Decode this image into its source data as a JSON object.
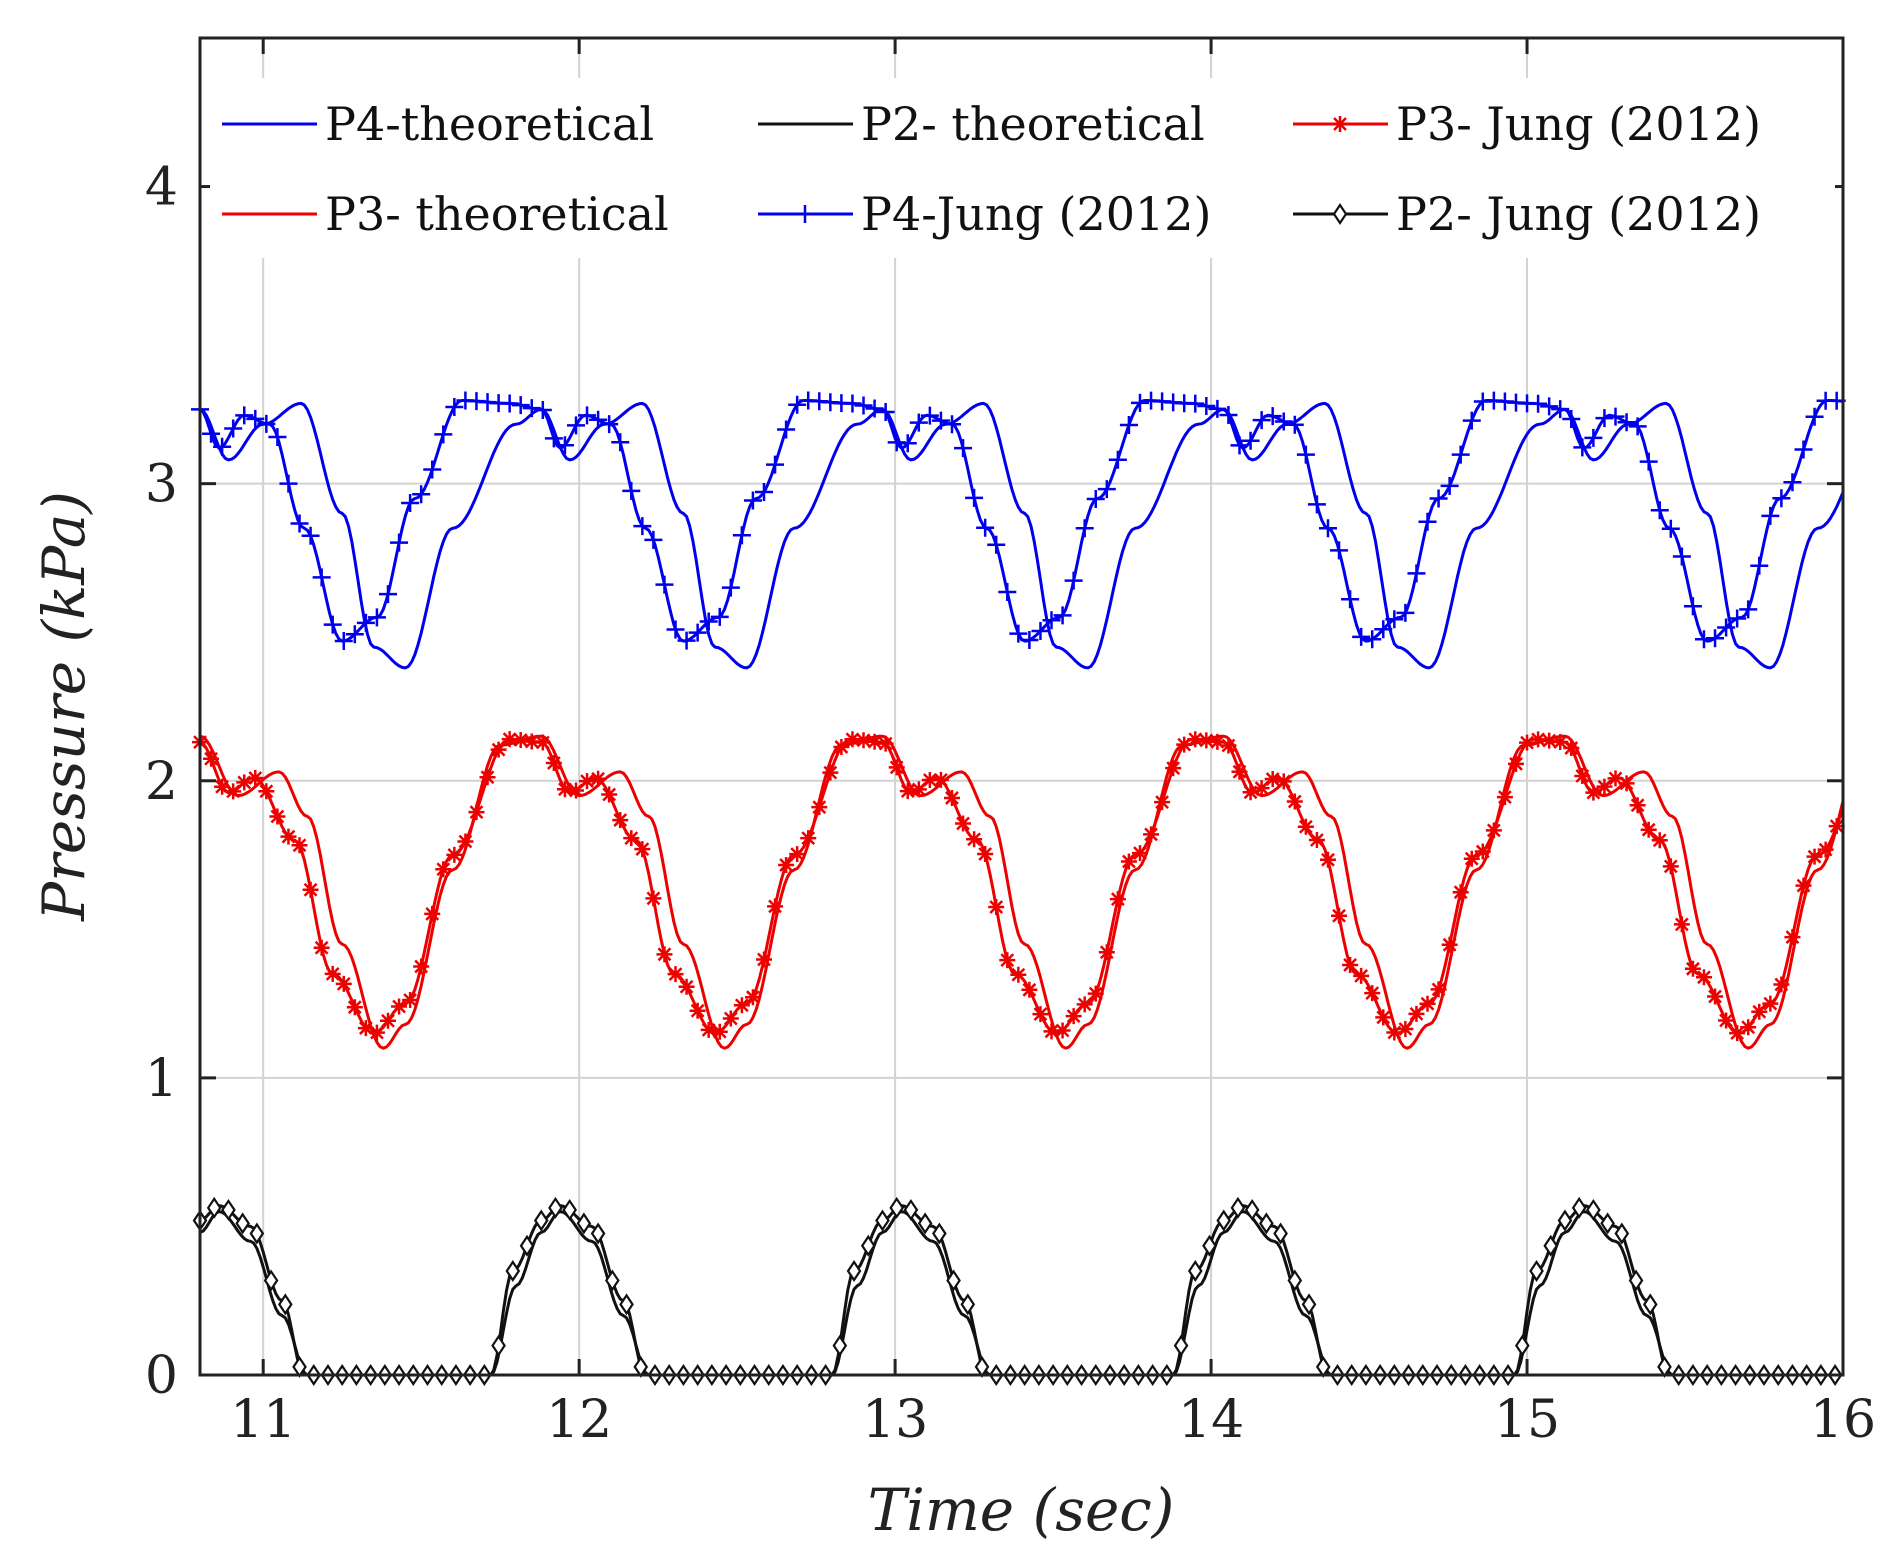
{
  "chart_data": {
    "type": "line",
    "title": "",
    "xlabel": "Time (sec)",
    "ylabel": "Pressure (kPa)",
    "xlim": [
      10.8,
      16
    ],
    "ylim": [
      0,
      4.5
    ],
    "xticks": [
      11,
      12,
      13,
      14,
      15,
      16
    ],
    "yticks": [
      0,
      1,
      2,
      3,
      4
    ],
    "xtick_labels": [
      "11",
      "12",
      "13",
      "14",
      "15",
      "16"
    ],
    "ytick_labels": [
      "0",
      "1",
      "2",
      "3",
      "4"
    ],
    "grid": true,
    "legend_position": "top",
    "period": 1.08,
    "series": [
      {
        "name": "P4-theoretical",
        "color": "#0000ee",
        "marker": "none",
        "cycle_t": [
          0,
          0.09,
          0.2,
          0.32,
          0.45,
          0.55,
          0.65,
          0.8,
          1.0,
          1.08
        ],
        "cycle_y": [
          3.25,
          3.08,
          3.2,
          3.27,
          2.9,
          2.45,
          2.38,
          2.85,
          3.2,
          3.25
        ],
        "start": 10.8,
        "end": 16.0
      },
      {
        "name": "P4-Jung (2012)",
        "color": "#0000ee",
        "marker": "plus",
        "cycle_t": [
          0,
          0.06,
          0.14,
          0.22,
          0.33,
          0.45,
          0.56,
          0.68,
          0.83,
          0.98,
          1.08
        ],
        "cycle_y": [
          3.25,
          3.12,
          3.23,
          3.2,
          2.85,
          2.47,
          2.55,
          2.95,
          3.28,
          3.27,
          3.25
        ],
        "start": 10.8,
        "end": 16.0
      },
      {
        "name": "P3- theoretical",
        "color": "#ee0000",
        "marker": "none",
        "cycle_t": [
          0,
          0.12,
          0.25,
          0.34,
          0.45,
          0.58,
          0.65,
          0.8,
          0.95,
          1.08
        ],
        "cycle_y": [
          2.15,
          1.95,
          2.03,
          1.88,
          1.45,
          1.1,
          1.18,
          1.7,
          2.12,
          2.15
        ],
        "start": 10.8,
        "end": 16.0
      },
      {
        "name": "P3- Jung (2012)",
        "color": "#ee0000",
        "marker": "asterisk",
        "cycle_t": [
          0,
          0.09,
          0.17,
          0.3,
          0.42,
          0.55,
          0.65,
          0.8,
          0.98,
          1.08
        ],
        "cycle_y": [
          2.13,
          1.96,
          2.01,
          1.8,
          1.35,
          1.15,
          1.25,
          1.75,
          2.14,
          2.13
        ],
        "start": 10.8,
        "end": 16.0
      },
      {
        "name": "P2- theoretical",
        "color": "#111111",
        "marker": "none",
        "cycle_t": [
          0,
          0.06,
          0.16,
          0.26,
          0.34,
          0.92,
          1.0,
          1.08
        ],
        "cycle_y": [
          0.48,
          0.55,
          0.45,
          0.2,
          0.0,
          0.0,
          0.3,
          0.48
        ],
        "start": 10.8,
        "end": 16.0
      },
      {
        "name": "P2- Jung (2012)",
        "color": "#111111",
        "marker": "diamond",
        "cycle_t": [
          0,
          0.06,
          0.16,
          0.26,
          0.33,
          0.92,
          0.99,
          1.08
        ],
        "cycle_y": [
          0.52,
          0.57,
          0.5,
          0.25,
          0.0,
          0.0,
          0.35,
          0.52
        ],
        "start": 10.8,
        "end": 16.0
      }
    ]
  }
}
